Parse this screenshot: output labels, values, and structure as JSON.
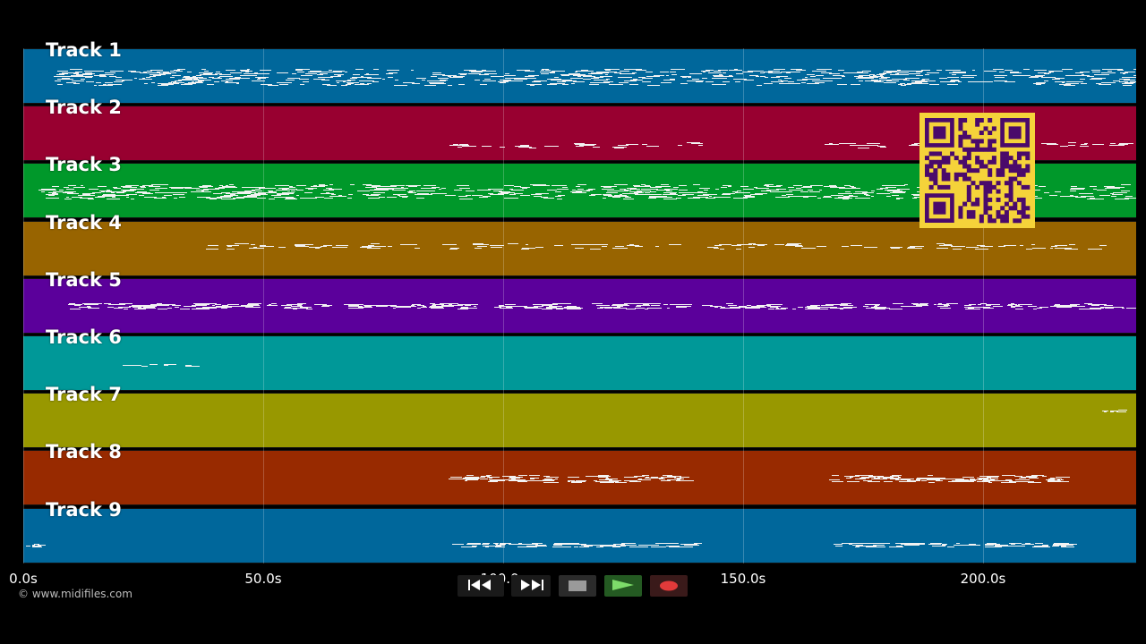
{
  "tracks": [
    {
      "label": "Track 1",
      "color": "#00679b"
    },
    {
      "label": "Track 2",
      "color": "#980030"
    },
    {
      "label": "Track 3",
      "color": "#00982a"
    },
    {
      "label": "Track 4",
      "color": "#986400"
    },
    {
      "label": "Track 5",
      "color": "#5b009b"
    },
    {
      "label": "Track 6",
      "color": "#009898"
    },
    {
      "label": "Track 7",
      "color": "#989800"
    },
    {
      "label": "Track 8",
      "color": "#982a00"
    },
    {
      "label": "Track 9",
      "color": "#00679b"
    }
  ],
  "timeline": {
    "ticks": [
      "0.0s",
      "50.0s",
      "100.0s",
      "150.0s",
      "200.0s"
    ]
  },
  "transport": {
    "rewind_icon": "rewind-icon",
    "forward_icon": "fast-forward-icon",
    "stop_icon": "stop-icon",
    "play_icon": "play-icon",
    "record_icon": "record-icon",
    "play_color": "#7ddc6a",
    "record_color": "#e23a3a"
  },
  "copyright": "© www.midifiles.com",
  "qr": {
    "color_bg": "#f5d33a",
    "color_fg": "#4a0a6b"
  }
}
